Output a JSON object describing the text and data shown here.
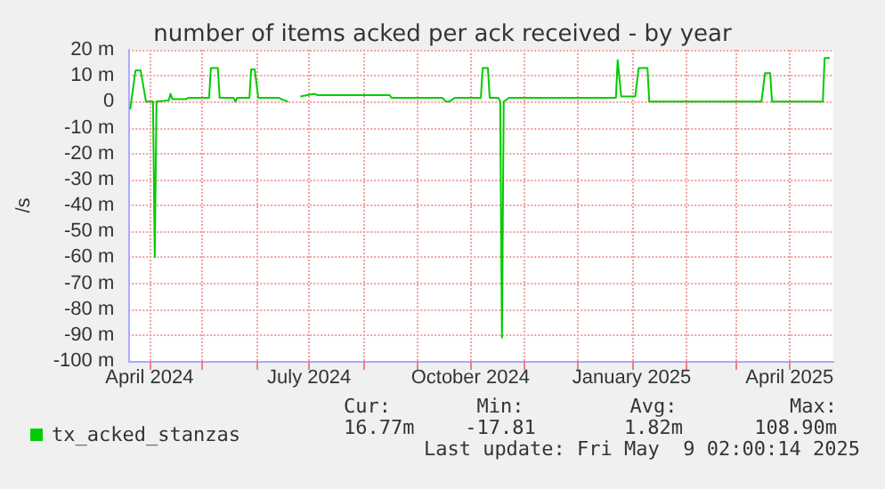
{
  "chart_data": {
    "type": "line",
    "title": "number of items acked per ack received - by year",
    "ylabel": "/s",
    "x": [
      "2024-03-21",
      "2024-03-24",
      "2024-03-27",
      "2024-03-30",
      "2024-04-03",
      "2024-04-04",
      "2024-04-05",
      "2024-04-12",
      "2024-04-13",
      "2024-04-14",
      "2024-04-22",
      "2024-04-23",
      "2024-05-05",
      "2024-05-06",
      "2024-05-10",
      "2024-05-11",
      "2024-05-19",
      "2024-05-20",
      "2024-05-21",
      "2024-05-28",
      "2024-05-29",
      "2024-05-31",
      "2024-06-02",
      "2024-06-14",
      "2024-06-15",
      "2024-06-19",
      "2024-06-20",
      "2024-06-26",
      "2024-07-04",
      "2024-07-06",
      "2024-08-16",
      "2024-08-17",
      "2024-09-15",
      "2024-09-17",
      "2024-09-19",
      "2024-09-22",
      "2024-10-07",
      "2024-10-08",
      "2024-10-11",
      "2024-10-12",
      "2024-10-17",
      "2024-10-18",
      "2024-10-19",
      "2024-10-20",
      "2024-10-23",
      "2024-12-23",
      "2024-12-24",
      "2024-12-26",
      "2025-01-03",
      "2025-01-05",
      "2025-01-10",
      "2025-01-11",
      "2025-03-16",
      "2025-03-18",
      "2025-03-21",
      "2025-03-22",
      "2025-04-20",
      "2025-04-21",
      "2025-04-24"
    ],
    "series": [
      {
        "name": "tx_acked_stanzas",
        "color": "#00cc00",
        "values": [
          -3,
          12,
          12,
          0,
          0,
          -60,
          0,
          0.5,
          3,
          1,
          1,
          1.5,
          1.5,
          13,
          13,
          1.5,
          1.5,
          0,
          1.5,
          1.5,
          12.5,
          12.5,
          1.5,
          1.5,
          1,
          0,
          null,
          2,
          3,
          2.5,
          2.5,
          1.5,
          1.5,
          0,
          0,
          1.5,
          1.5,
          13,
          13,
          1.5,
          1.5,
          0,
          -91,
          0,
          1.5,
          1.5,
          16,
          2,
          2,
          13,
          13,
          0,
          0,
          11,
          11,
          0,
          0,
          16.8,
          16.8
        ]
      }
    ],
    "xlim": [
      "2024-03-20",
      "2025-04-26"
    ],
    "xticks": [
      {
        "value": "2024-04-01",
        "label": "April 2024"
      },
      {
        "value": "2024-05-01",
        "label": null
      },
      {
        "value": "2024-06-01",
        "label": null
      },
      {
        "value": "2024-07-01",
        "label": "July 2024"
      },
      {
        "value": "2024-08-01",
        "label": null
      },
      {
        "value": "2024-09-01",
        "label": null
      },
      {
        "value": "2024-10-01",
        "label": "October 2024"
      },
      {
        "value": "2024-11-01",
        "label": null
      },
      {
        "value": "2024-12-01",
        "label": null
      },
      {
        "value": "2025-01-01",
        "label": "January 2025"
      },
      {
        "value": "2025-02-01",
        "label": null
      },
      {
        "value": "2025-03-01",
        "label": null
      },
      {
        "value": "2025-04-01",
        "label": "April 2025"
      }
    ],
    "ylim": [
      -100,
      20
    ],
    "yticks": [
      {
        "value": 20,
        "label": "20 m"
      },
      {
        "value": 10,
        "label": "10 m"
      },
      0,
      {
        "value": -10,
        "label": "-10 m"
      },
      {
        "value": -20,
        "label": "-20 m"
      },
      {
        "value": -30,
        "label": "-30 m"
      },
      {
        "value": -40,
        "label": "-40 m"
      },
      {
        "value": -50,
        "label": "-50 m"
      },
      {
        "value": -60,
        "label": "-60 m"
      },
      {
        "value": -70,
        "label": "-70 m"
      },
      {
        "value": -80,
        "label": "-80 m"
      },
      {
        "value": -90,
        "label": "-90 m"
      },
      {
        "value": -100,
        "label": "-100 m"
      }
    ],
    "grid": true,
    "legend": "bottom left",
    "marker": "none",
    "line_style": "solid",
    "annotations": [
      "Cur:",
      "Min:",
      "Avg:",
      "Max:",
      "16.77m",
      "-17.81",
      "1.82m",
      "108.90m",
      "Last update: Fri May  9 02:00:14 2025"
    ]
  }
}
